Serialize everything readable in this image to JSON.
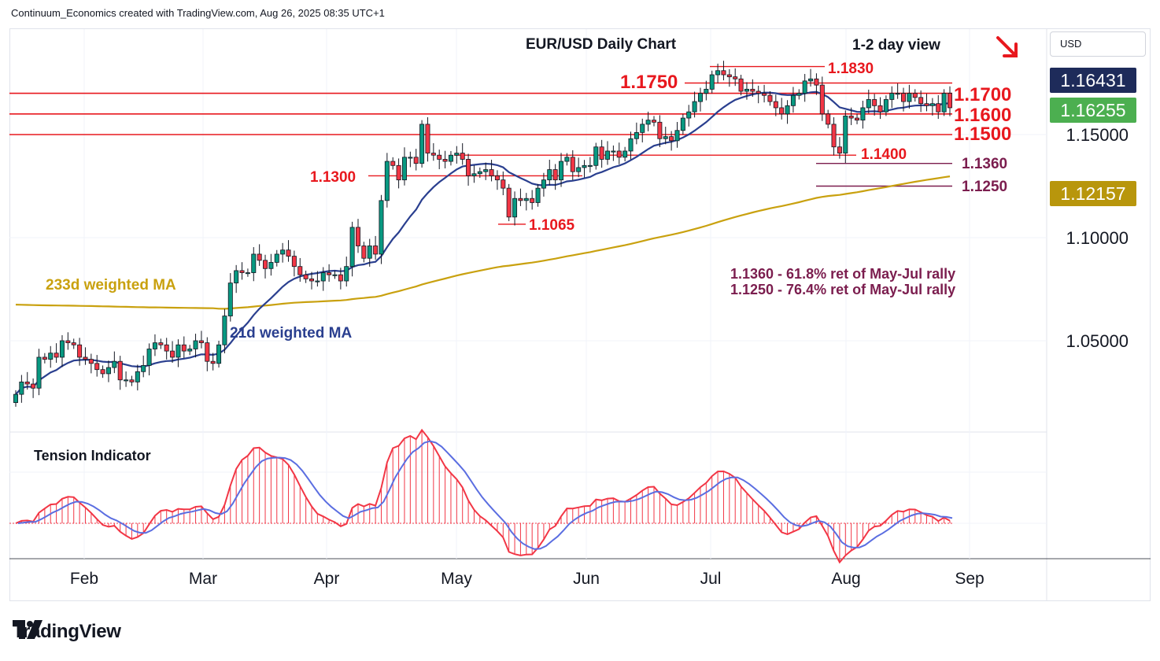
{
  "header": {
    "text": "Continuum_Economics created with TradingView.com, Aug 26, 2025 08:35 UTC+1"
  },
  "currency": {
    "label": "USD"
  },
  "brand": {
    "name": "TradingView",
    "icon": "tradingview-logo-icon"
  },
  "icons": {
    "direction": "arrow-down-right-icon"
  },
  "colors": {
    "up": "#089981",
    "down": "#f23645",
    "resistance": "#e8181e",
    "fib": "#7b1d4e",
    "ma21": "#2a3f8f",
    "ma233": "#c9a10f",
    "tension_line_red": "#f23645",
    "tension_line_blue": "#5b6ee1",
    "last_price_bg": "#1e2b5a",
    "current_price_bg": "#4caf50",
    "ma233_bg": "#b8960c"
  },
  "chart_data": [
    {
      "type": "candlestick",
      "title": "EUR/USD Daily Chart",
      "subtitle": "1-2 day view",
      "x_ticks": [
        "Feb",
        "Mar",
        "Apr",
        "May",
        "Jun",
        "Jul",
        "Aug",
        "Sep"
      ],
      "y_ticks": [
        "1.15000",
        "1.10000",
        "1.05000"
      ],
      "ylim": [
        1.0,
        1.19
      ],
      "grid": true,
      "price_badges": [
        {
          "label": "1.16431",
          "role": "last"
        },
        {
          "label": "1.16255",
          "role": "current"
        },
        {
          "label": "1.12157",
          "role": "233d weighted MA"
        }
      ],
      "levels": [
        {
          "value": 1.183,
          "label": "1.1830",
          "kind": "resistance"
        },
        {
          "value": 1.175,
          "label": "1.1750",
          "kind": "resistance"
        },
        {
          "value": 1.17,
          "label": "1.1700",
          "kind": "resistance"
        },
        {
          "value": 1.16,
          "label": "1.1600",
          "kind": "support"
        },
        {
          "value": 1.15,
          "label": "1.1500",
          "kind": "support"
        },
        {
          "value": 1.14,
          "label": "1.1400",
          "kind": "support"
        },
        {
          "value": 1.136,
          "label": "1.1360",
          "kind": "fib"
        },
        {
          "value": 1.13,
          "label": "1.1300",
          "kind": "support"
        },
        {
          "value": 1.125,
          "label": "1.1250",
          "kind": "fib"
        },
        {
          "value": 1.1065,
          "label": "1.1065",
          "kind": "support"
        }
      ],
      "annotations": [
        "1.1360 - 61.8% ret of May-Jul rally",
        "1.1250 - 76.4% ret of May-Jul rally",
        "233d weighted MA",
        "21d weighted MA"
      ],
      "series": [
        {
          "name": "EUR/USD",
          "dates": [
            "Jan 13",
            "Jan 14",
            "Jan 15",
            "Jan 16",
            "Jan 17",
            "Jan 20",
            "Jan 21",
            "Jan 22",
            "Jan 23",
            "Jan 24",
            "Jan 27",
            "Jan 28",
            "Jan 29",
            "Jan 30",
            "Jan 31",
            "Feb 3",
            "Feb 4",
            "Feb 5",
            "Feb 6",
            "Feb 7",
            "Feb 10",
            "Feb 11",
            "Feb 12",
            "Feb 13",
            "Feb 14",
            "Feb 17",
            "Feb 18",
            "Feb 19",
            "Feb 20",
            "Feb 21",
            "Feb 24",
            "Feb 25",
            "Feb 26",
            "Feb 27",
            "Feb 28",
            "Mar 3",
            "Mar 4",
            "Mar 5",
            "Mar 6",
            "Mar 7",
            "Mar 10",
            "Mar 11",
            "Mar 12",
            "Mar 13",
            "Mar 14",
            "Mar 17",
            "Mar 18",
            "Mar 19",
            "Mar 20",
            "Mar 21",
            "Mar 24",
            "Mar 25",
            "Mar 26",
            "Mar 27",
            "Mar 28",
            "Mar 31",
            "Apr 1",
            "Apr 2",
            "Apr 3",
            "Apr 4",
            "Apr 7",
            "Apr 8",
            "Apr 9",
            "Apr 10",
            "Apr 11",
            "Apr 14",
            "Apr 15",
            "Apr 16",
            "Apr 17",
            "Apr 18",
            "Apr 21",
            "Apr 22",
            "Apr 23",
            "Apr 24",
            "Apr 25",
            "Apr 28",
            "Apr 29",
            "Apr 30",
            "May 1",
            "May 2",
            "May 5",
            "May 6",
            "May 7",
            "May 8",
            "May 9",
            "May 12",
            "May 13",
            "May 14",
            "May 15",
            "May 16",
            "May 19",
            "May 20",
            "May 21",
            "May 22",
            "May 23",
            "May 26",
            "May 27",
            "May 28",
            "May 29",
            "May 30",
            "Jun 2",
            "Jun 3",
            "Jun 4",
            "Jun 5",
            "Jun 6",
            "Jun 9",
            "Jun 10",
            "Jun 11",
            "Jun 12",
            "Jun 13",
            "Jun 16",
            "Jun 17",
            "Jun 18",
            "Jun 19",
            "Jun 20",
            "Jun 23",
            "Jun 24",
            "Jun 25",
            "Jun 26",
            "Jun 27",
            "Jun 30",
            "Jul 1",
            "Jul 2",
            "Jul 3",
            "Jul 4",
            "Jul 7",
            "Jul 8",
            "Jul 9",
            "Jul 10",
            "Jul 11",
            "Jul 14",
            "Jul 15",
            "Jul 16",
            "Jul 17",
            "Jul 18",
            "Jul 21",
            "Jul 22",
            "Jul 23",
            "Jul 24",
            "Jul 25",
            "Jul 28",
            "Jul 29",
            "Jul 30",
            "Jul 31",
            "Aug 1",
            "Aug 4",
            "Aug 5",
            "Aug 6",
            "Aug 7",
            "Aug 8",
            "Aug 11",
            "Aug 12",
            "Aug 13",
            "Aug 14",
            "Aug 15",
            "Aug 18",
            "Aug 19",
            "Aug 20",
            "Aug 21",
            "Aug 22",
            "Aug 25",
            "Aug 26"
          ],
          "close": [
            1.024,
            1.03,
            1.029,
            1.027,
            1.042,
            1.041,
            1.044,
            1.042,
            1.05,
            1.049,
            1.048,
            1.042,
            1.041,
            1.039,
            1.036,
            1.034,
            1.037,
            1.04,
            1.031,
            1.031,
            1.03,
            1.035,
            1.038,
            1.046,
            1.049,
            1.048,
            1.045,
            1.042,
            1.048,
            1.045,
            1.046,
            1.05,
            1.049,
            1.04,
            1.039,
            1.048,
            1.062,
            1.078,
            1.084,
            1.083,
            1.083,
            1.092,
            1.089,
            1.085,
            1.088,
            1.092,
            1.094,
            1.091,
            1.086,
            1.082,
            1.08,
            1.079,
            1.079,
            1.083,
            1.082,
            1.082,
            1.079,
            1.086,
            1.105,
            1.096,
            1.09,
            1.096,
            1.092,
            1.118,
            1.137,
            1.135,
            1.128,
            1.139,
            1.139,
            1.136,
            1.155,
            1.141,
            1.14,
            1.138,
            1.137,
            1.14,
            1.141,
            1.138,
            1.13,
            1.131,
            1.132,
            1.133,
            1.13,
            1.128,
            1.124,
            1.11,
            1.119,
            1.118,
            1.119,
            1.117,
            1.124,
            1.128,
            1.133,
            1.128,
            1.137,
            1.139,
            1.132,
            1.134,
            1.135,
            1.135,
            1.144,
            1.138,
            1.142,
            1.142,
            1.139,
            1.142,
            1.148,
            1.151,
            1.155,
            1.157,
            1.156,
            1.148,
            1.149,
            1.147,
            1.152,
            1.158,
            1.161,
            1.166,
            1.17,
            1.172,
            1.179,
            1.181,
            1.179,
            1.178,
            1.177,
            1.171,
            1.172,
            1.171,
            1.17,
            1.169,
            1.166,
            1.163,
            1.16,
            1.164,
            1.169,
            1.17,
            1.176,
            1.177,
            1.174,
            1.16,
            1.155,
            1.144,
            1.141,
            1.159,
            1.158,
            1.157,
            1.163,
            1.167,
            1.164,
            1.161,
            1.167,
            1.17,
            1.17,
            1.166,
            1.17,
            1.168,
            1.165,
            1.164,
            1.165,
            1.161,
            1.17,
            1.163
          ]
        },
        {
          "name": "21d weighted MA"
        },
        {
          "name": "233d weighted MA"
        }
      ]
    },
    {
      "type": "histogram",
      "title": "Tension Indicator",
      "x_ticks": [
        "Feb",
        "Mar",
        "Apr",
        "May",
        "Jun",
        "Jul",
        "Aug",
        "Sep"
      ]
    }
  ]
}
